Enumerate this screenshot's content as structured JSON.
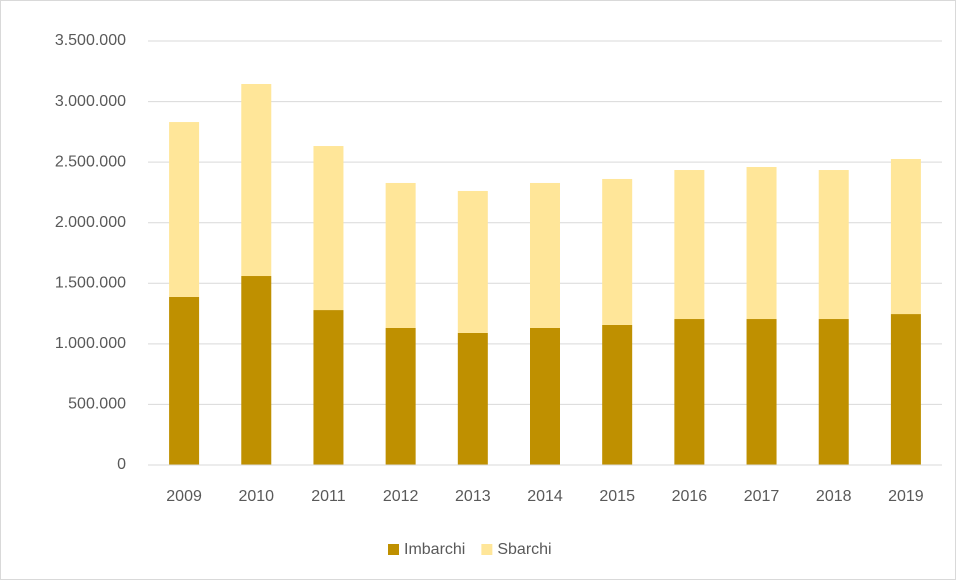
{
  "chart_data": {
    "type": "stacked_bar",
    "categories": [
      "2009",
      "2010",
      "2011",
      "2012",
      "2013",
      "2014",
      "2015",
      "2016",
      "2017",
      "2018",
      "2019"
    ],
    "series": [
      {
        "name": "Imbarchi",
        "color": "#bf9000",
        "values": [
          1387000,
          1560000,
          1279000,
          1131000,
          1090000,
          1131000,
          1156000,
          1205000,
          1205000,
          1205000,
          1246000
        ]
      },
      {
        "name": "Sbarchi",
        "color": "#ffe699",
        "values": [
          1444000,
          1585000,
          1354000,
          1197000,
          1172000,
          1197000,
          1205000,
          1230000,
          1255000,
          1230000,
          1280000
        ]
      }
    ],
    "ylim": [
      0,
      3500000
    ],
    "yticks": [
      0,
      {
        "value": 500000,
        "label": "500.000"
      },
      {
        "value": 1000000,
        "label": "1.000.000"
      },
      {
        "value": 1500000,
        "label": "1.500.000"
      },
      {
        "value": 2000000,
        "label": "2.000.000"
      },
      {
        "value": 2500000,
        "label": "2.500.000"
      },
      {
        "value": 3000000,
        "label": "3.000.000"
      },
      {
        "value": 3500000,
        "label": "3.500.000"
      }
    ],
    "grid": true,
    "legend": "bottom"
  }
}
